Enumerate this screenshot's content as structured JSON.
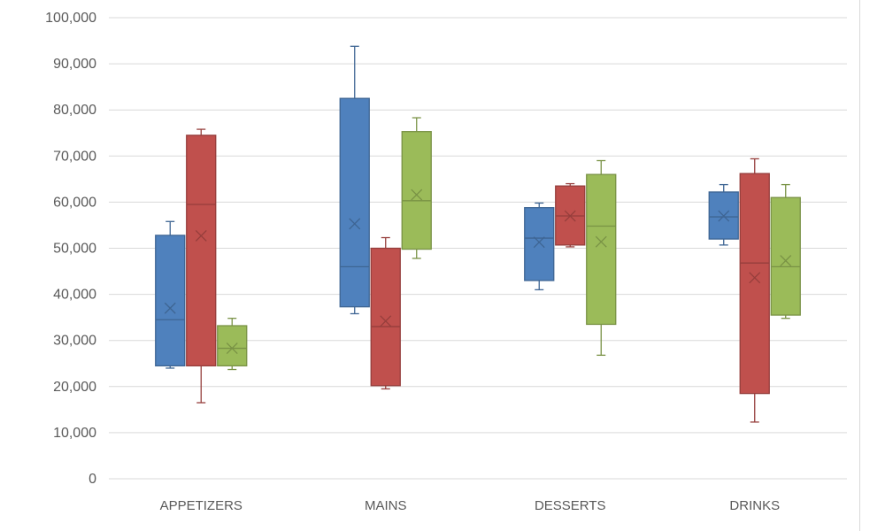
{
  "chart_data": {
    "type": "box",
    "title": "",
    "xlabel": "",
    "ylabel": "",
    "ylim": [
      0,
      100000
    ],
    "y_ticks": [
      "0",
      "10,000",
      "20,000",
      "30,000",
      "40,000",
      "50,000",
      "60,000",
      "70,000",
      "80,000",
      "90,000",
      "100,000"
    ],
    "grid": true,
    "legend": "none",
    "categories": [
      "APPETIZERS",
      "MAINS",
      "DESSERTS",
      "DRINKS"
    ],
    "series": [
      {
        "color": "#4f81bd",
        "boxes": [
          {
            "min": 24000,
            "q1": 24500,
            "median": 34500,
            "q3": 52800,
            "max": 55800,
            "mean": 37000
          },
          {
            "min": 35800,
            "q1": 37300,
            "median": 46000,
            "q3": 82500,
            "max": 93800,
            "mean": 55300
          },
          {
            "min": 41000,
            "q1": 43000,
            "median": 52200,
            "q3": 58800,
            "max": 59800,
            "mean": 51300
          },
          {
            "min": 50700,
            "q1": 52000,
            "median": 56800,
            "q3": 62200,
            "max": 63800,
            "mean": 57000
          }
        ]
      },
      {
        "color": "#c0504d",
        "boxes": [
          {
            "min": 16500,
            "q1": 24500,
            "median": 59500,
            "q3": 74500,
            "max": 75800,
            "mean": 52700
          },
          {
            "min": 19500,
            "q1": 20200,
            "median": 33000,
            "q3": 50000,
            "max": 52300,
            "mean": 34200
          },
          {
            "min": 50300,
            "q1": 50700,
            "median": 57000,
            "q3": 63500,
            "max": 64000,
            "mean": 57000
          },
          {
            "min": 12300,
            "q1": 18500,
            "median": 46800,
            "q3": 66200,
            "max": 69400,
            "mean": 43600
          }
        ]
      },
      {
        "color": "#9bbb59",
        "boxes": [
          {
            "min": 23700,
            "q1": 24500,
            "median": 28300,
            "q3": 33200,
            "max": 34800,
            "mean": 28300
          },
          {
            "min": 47800,
            "q1": 49800,
            "median": 60300,
            "q3": 75300,
            "max": 78300,
            "mean": 61600
          },
          {
            "min": 26800,
            "q1": 33500,
            "median": 54800,
            "q3": 66000,
            "max": 69000,
            "mean": 51400
          },
          {
            "min": 34800,
            "q1": 35500,
            "median": 46000,
            "q3": 61000,
            "max": 63800,
            "mean": 47300
          }
        ]
      }
    ]
  }
}
